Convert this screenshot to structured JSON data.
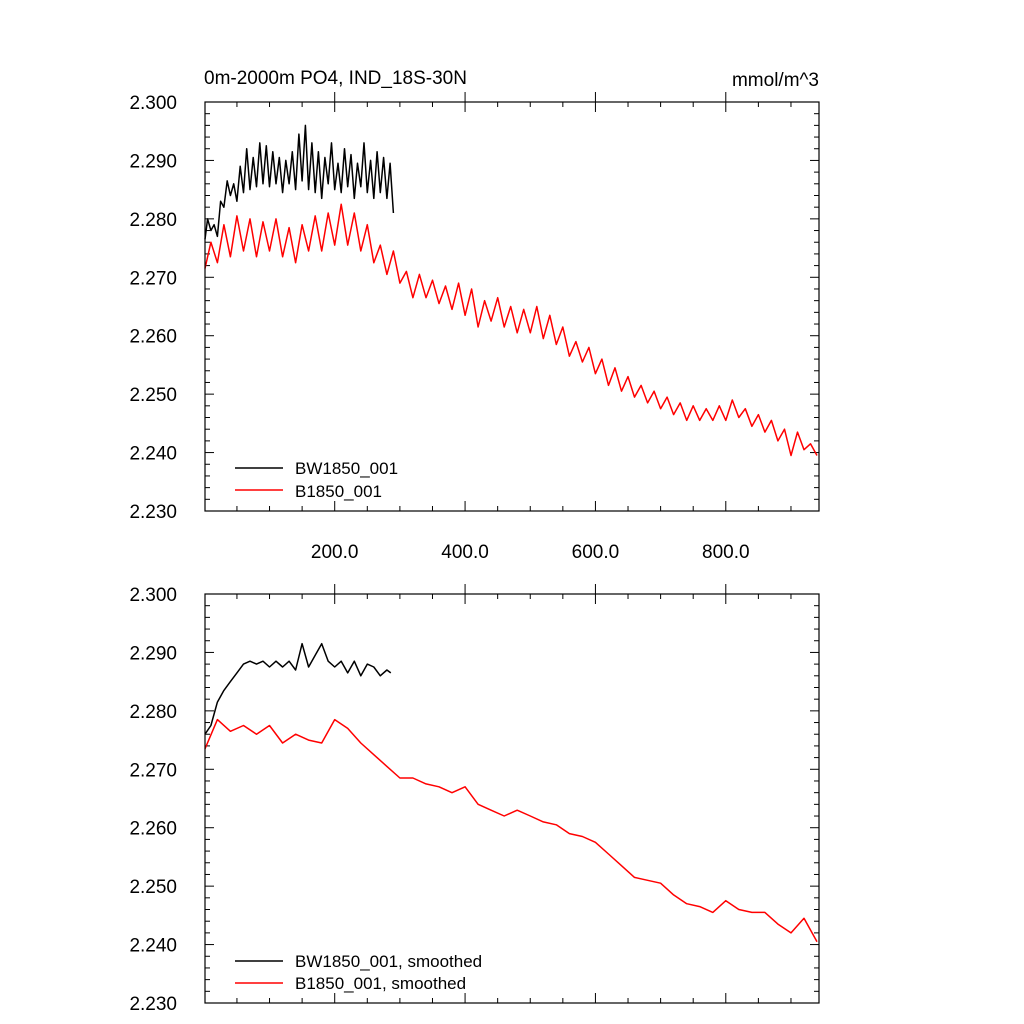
{
  "chart_data": [
    {
      "type": "line",
      "title": "0m-2000m PO4, IND_18S-30N",
      "units": "mmol/m^3",
      "xlim": [
        1,
        943
      ],
      "ylim": [
        2.23,
        2.3
      ],
      "y_ticks": [
        "2.230",
        "2.240",
        "2.250",
        "2.260",
        "2.270",
        "2.280",
        "2.290",
        "2.300"
      ],
      "x_ticks": [
        "200.0",
        "400.0",
        "600.0",
        "800.0"
      ],
      "x_tick_values": [
        200,
        400,
        600,
        800
      ],
      "y_tick_values": [
        2.23,
        2.24,
        2.25,
        2.26,
        2.27,
        2.28,
        2.29,
        2.3
      ],
      "legend_position": "bottom-left",
      "series": [
        {
          "name": "BW1850_001",
          "color": "#000000",
          "x": [
            1,
            5,
            10,
            15,
            20,
            25,
            30,
            35,
            40,
            45,
            50,
            55,
            60,
            65,
            70,
            75,
            80,
            85,
            90,
            95,
            100,
            105,
            110,
            115,
            120,
            125,
            130,
            135,
            140,
            145,
            150,
            155,
            160,
            165,
            170,
            175,
            180,
            185,
            190,
            195,
            200,
            205,
            210,
            215,
            220,
            225,
            230,
            235,
            240,
            245,
            250,
            255,
            260,
            265,
            270,
            275,
            280,
            285,
            290
          ],
          "y": [
            2.2765,
            2.28,
            2.278,
            2.279,
            2.277,
            2.283,
            2.282,
            2.2865,
            2.284,
            2.286,
            2.283,
            2.289,
            2.2845,
            2.292,
            2.285,
            2.2905,
            2.2855,
            2.293,
            2.286,
            2.2925,
            2.2855,
            2.2915,
            2.286,
            2.2905,
            2.2845,
            2.29,
            2.286,
            2.2915,
            2.285,
            2.2945,
            2.2865,
            2.296,
            2.285,
            2.293,
            2.2845,
            2.2915,
            2.2835,
            2.2905,
            2.286,
            2.293,
            2.285,
            2.2895,
            2.2845,
            2.292,
            2.2855,
            2.291,
            2.2835,
            2.2895,
            2.2855,
            2.293,
            2.2845,
            2.29,
            2.2835,
            2.2915,
            2.2845,
            2.2905,
            2.2835,
            2.2895,
            2.281
          ]
        },
        {
          "name": "B1850_001",
          "color": "#ff0000",
          "x": [
            1,
            10,
            20,
            30,
            40,
            50,
            60,
            70,
            80,
            90,
            100,
            110,
            120,
            130,
            140,
            150,
            160,
            170,
            180,
            190,
            200,
            210,
            220,
            230,
            240,
            250,
            260,
            270,
            280,
            290,
            300,
            310,
            320,
            330,
            340,
            350,
            360,
            370,
            380,
            390,
            400,
            410,
            420,
            430,
            440,
            450,
            460,
            470,
            480,
            490,
            500,
            510,
            520,
            530,
            540,
            550,
            560,
            570,
            580,
            590,
            600,
            610,
            620,
            630,
            640,
            650,
            660,
            670,
            680,
            690,
            700,
            710,
            720,
            730,
            740,
            750,
            760,
            770,
            780,
            790,
            800,
            810,
            820,
            830,
            840,
            850,
            860,
            870,
            880,
            890,
            900,
            910,
            920,
            930,
            940
          ],
          "y": [
            2.2715,
            2.276,
            2.2725,
            2.279,
            2.2735,
            2.2805,
            2.2745,
            2.28,
            2.2735,
            2.2795,
            2.2745,
            2.28,
            2.2735,
            2.2785,
            2.2725,
            2.279,
            2.2745,
            2.2805,
            2.2745,
            2.281,
            2.2755,
            2.2825,
            2.2755,
            2.281,
            2.2745,
            2.279,
            2.2725,
            2.2755,
            2.2705,
            2.2745,
            2.269,
            2.271,
            2.2665,
            2.2705,
            2.2665,
            2.2695,
            2.2655,
            2.2685,
            2.2645,
            2.269,
            2.2635,
            2.268,
            2.2615,
            2.266,
            2.2625,
            2.2665,
            2.2615,
            2.265,
            2.2605,
            2.2645,
            2.2605,
            2.265,
            2.2595,
            2.2635,
            2.2585,
            2.2615,
            2.2565,
            2.259,
            2.2555,
            2.258,
            2.2535,
            2.256,
            2.2515,
            2.2545,
            2.2505,
            2.253,
            2.2495,
            2.2515,
            2.2485,
            2.2505,
            2.2475,
            2.2495,
            2.2465,
            2.2485,
            2.2455,
            2.248,
            2.2455,
            2.2475,
            2.2455,
            2.248,
            2.2455,
            2.249,
            2.246,
            2.2475,
            2.2445,
            2.2465,
            2.2435,
            2.2455,
            2.242,
            2.244,
            2.2395,
            2.2435,
            2.2405,
            2.2415,
            2.2395
          ]
        }
      ]
    },
    {
      "type": "line",
      "xlim": [
        1,
        943
      ],
      "ylim": [
        2.23,
        2.3
      ],
      "y_ticks": [
        "2.230",
        "2.240",
        "2.250",
        "2.260",
        "2.270",
        "2.280",
        "2.290",
        "2.300"
      ],
      "y_tick_values": [
        2.23,
        2.24,
        2.25,
        2.26,
        2.27,
        2.28,
        2.29,
        2.3
      ],
      "x_tick_values": [
        200,
        400,
        600,
        800
      ],
      "legend_position": "bottom-left",
      "series": [
        {
          "name": "BW1850_001, smoothed",
          "color": "#000000",
          "x": [
            1,
            10,
            20,
            30,
            40,
            50,
            60,
            70,
            80,
            90,
            100,
            110,
            120,
            130,
            140,
            150,
            160,
            170,
            180,
            190,
            200,
            210,
            220,
            230,
            240,
            250,
            260,
            270,
            280,
            286
          ],
          "y": [
            2.276,
            2.2775,
            2.2815,
            2.2835,
            2.285,
            2.2865,
            2.288,
            2.2885,
            2.288,
            2.2885,
            2.2875,
            2.2885,
            2.2875,
            2.2885,
            2.287,
            2.2915,
            2.2875,
            2.2895,
            2.2915,
            2.2885,
            2.2875,
            2.2885,
            2.2865,
            2.2885,
            2.286,
            2.288,
            2.2875,
            2.286,
            2.287,
            2.2865
          ]
        },
        {
          "name": "B1850_001, smoothed",
          "color": "#ff0000",
          "x": [
            1,
            20,
            40,
            60,
            80,
            100,
            120,
            140,
            160,
            180,
            200,
            220,
            240,
            260,
            280,
            300,
            320,
            340,
            360,
            380,
            400,
            420,
            440,
            460,
            480,
            500,
            520,
            540,
            560,
            580,
            600,
            620,
            640,
            660,
            680,
            700,
            720,
            740,
            760,
            780,
            800,
            820,
            840,
            860,
            880,
            900,
            920,
            940
          ],
          "y": [
            2.2735,
            2.2785,
            2.2765,
            2.2775,
            2.276,
            2.2775,
            2.2745,
            2.276,
            2.275,
            2.2745,
            2.2785,
            2.277,
            2.2745,
            2.2725,
            2.2705,
            2.2685,
            2.2685,
            2.2675,
            2.267,
            2.266,
            2.267,
            2.264,
            2.263,
            2.262,
            2.263,
            2.262,
            2.261,
            2.2605,
            2.259,
            2.2585,
            2.2575,
            2.2555,
            2.2535,
            2.2515,
            2.251,
            2.2505,
            2.2485,
            2.247,
            2.2465,
            2.2455,
            2.2475,
            2.246,
            2.2455,
            2.2455,
            2.2435,
            2.242,
            2.2445,
            2.2405
          ]
        }
      ]
    }
  ]
}
